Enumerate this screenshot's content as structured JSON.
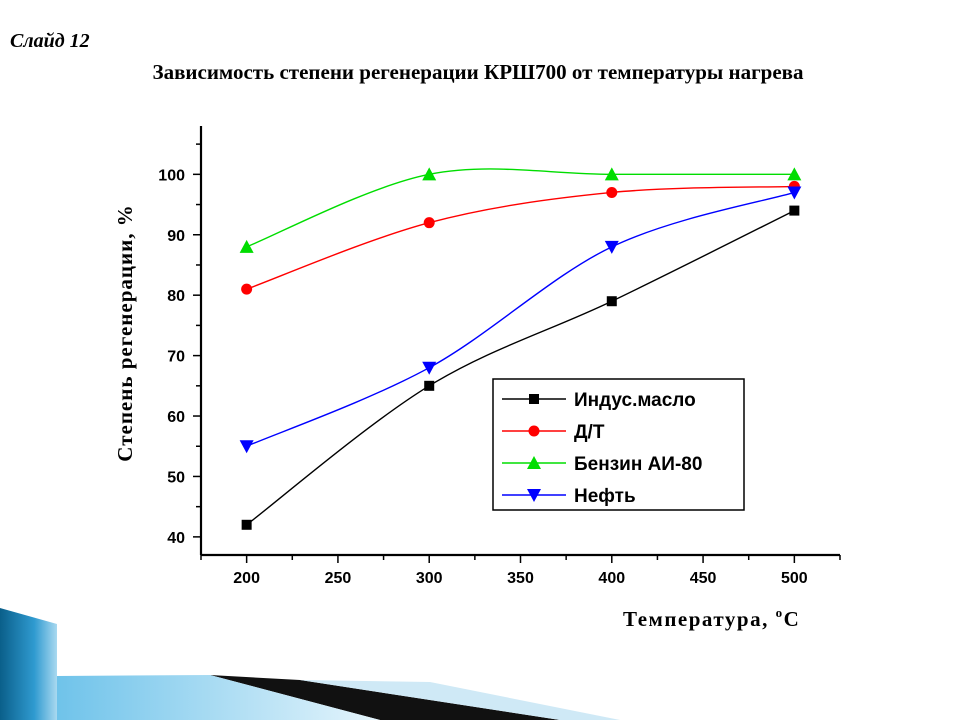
{
  "slide": {
    "number_label": "Слайд 12",
    "title": "Зависимость степени регенерации КРШ700 от температуры нагрева"
  },
  "chart_data": {
    "type": "line",
    "title": "",
    "xlabel": "Температура, °С",
    "xlabel_main": "Температура, ",
    "xlabel_degree": "o",
    "xlabel_unit": "С",
    "ylabel": "Степень регенерации, %",
    "xlim": [
      175,
      525
    ],
    "ylim": [
      37,
      108
    ],
    "x_ticks": [
      200,
      250,
      300,
      350,
      400,
      450,
      500
    ],
    "y_ticks": [
      40,
      50,
      60,
      70,
      80,
      90,
      100
    ],
    "x": [
      200,
      300,
      400,
      500
    ],
    "grid": false,
    "legend_position": "lower-right",
    "series": [
      {
        "name": "Индус.масло",
        "color": "#000000",
        "marker": "square",
        "values": [
          42,
          65,
          79,
          94
        ]
      },
      {
        "name": "Д/Т",
        "color": "#ff0000",
        "marker": "circle",
        "values": [
          81,
          92,
          97,
          98
        ]
      },
      {
        "name": "Бензин АИ-80",
        "color": "#00dd00",
        "marker": "triangle-up",
        "values": [
          88,
          100,
          100,
          100
        ]
      },
      {
        "name": "Нефть",
        "color": "#0000ff",
        "marker": "triangle-down",
        "values": [
          55,
          68,
          88,
          97
        ]
      }
    ]
  }
}
